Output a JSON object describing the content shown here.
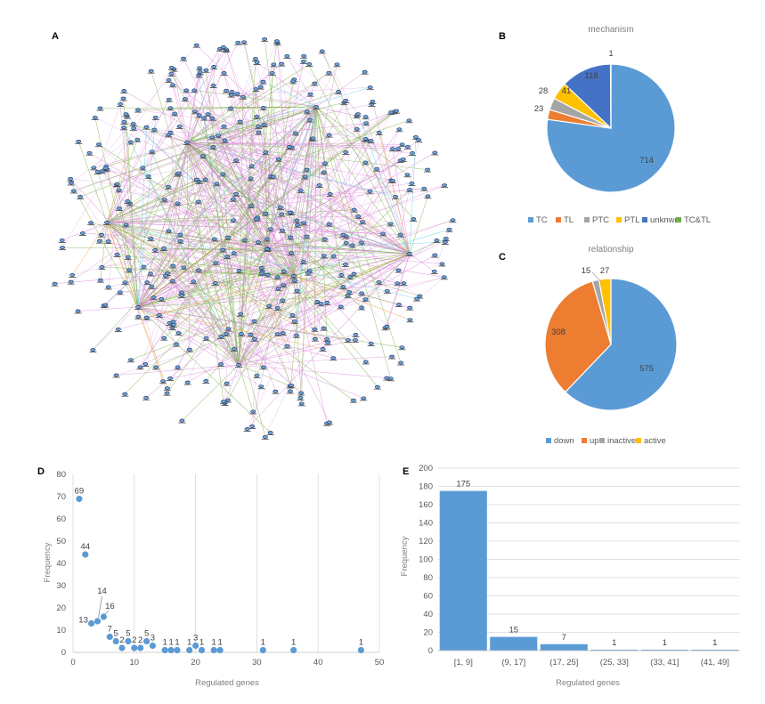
{
  "panels": {
    "A": "A",
    "B": "B",
    "C": "C",
    "D": "D",
    "E": "E"
  },
  "chart_data": [
    {
      "id": "A",
      "type": "network",
      "title": "",
      "edge_colors": {
        "TC": "#d98bd9",
        "TL": "#7fb24a",
        "other": "#5fd3e0",
        "accent": "#f0a040"
      },
      "node_color": "#233a66",
      "node_fill": "#6fa8dc"
    },
    {
      "id": "B",
      "type": "pie",
      "title": "mechanism",
      "labels": [
        "TC",
        "TL",
        "PTC",
        "PTL",
        "unknwn",
        "TC&TL"
      ],
      "values": [
        714,
        23,
        28,
        41,
        118,
        1
      ],
      "colors": [
        "#5b9bd5",
        "#ed7d31",
        "#a5a5a5",
        "#ffc000",
        "#4472c4",
        "#70ad47"
      ],
      "legend": "bottom"
    },
    {
      "id": "C",
      "type": "pie",
      "title": "relationship",
      "labels": [
        "down",
        "up",
        "inactive",
        "active"
      ],
      "values": [
        575,
        308,
        15,
        27
      ],
      "colors": [
        "#5b9bd5",
        "#ed7d31",
        "#a5a5a5",
        "#ffc000"
      ],
      "legend": "bottom"
    },
    {
      "id": "D",
      "type": "scatter",
      "title": "",
      "xlabel": "Regulated genes",
      "ylabel": "Frequency",
      "xlim": [
        0,
        50
      ],
      "ylim": [
        0,
        80
      ],
      "xticks": [
        0,
        10,
        20,
        30,
        40,
        50
      ],
      "yticks": [
        0,
        10,
        20,
        30,
        40,
        50,
        60,
        70,
        80
      ],
      "grid": "vertical",
      "color": "#5b9bd5",
      "points": [
        {
          "x": 1,
          "y": 69,
          "label": "69"
        },
        {
          "x": 2,
          "y": 44,
          "label": "44"
        },
        {
          "x": 3,
          "y": 13,
          "label": "13"
        },
        {
          "x": 4,
          "y": 14,
          "label": "14"
        },
        {
          "x": 5,
          "y": 16,
          "label": "16"
        },
        {
          "x": 6,
          "y": 7,
          "label": "7"
        },
        {
          "x": 7,
          "y": 5,
          "label": "5"
        },
        {
          "x": 8,
          "y": 2,
          "label": "2"
        },
        {
          "x": 9,
          "y": 5,
          "label": "5"
        },
        {
          "x": 10,
          "y": 2,
          "label": "2"
        },
        {
          "x": 11,
          "y": 2,
          "label": "2"
        },
        {
          "x": 12,
          "y": 5,
          "label": "5"
        },
        {
          "x": 13,
          "y": 3,
          "label": "3"
        },
        {
          "x": 15,
          "y": 1,
          "label": "1"
        },
        {
          "x": 16,
          "y": 1,
          "label": "1"
        },
        {
          "x": 17,
          "y": 1,
          "label": "1"
        },
        {
          "x": 19,
          "y": 1,
          "label": "1"
        },
        {
          "x": 20,
          "y": 3,
          "label": "3"
        },
        {
          "x": 21,
          "y": 1,
          "label": "1"
        },
        {
          "x": 23,
          "y": 1,
          "label": "1"
        },
        {
          "x": 24,
          "y": 1,
          "label": "1"
        },
        {
          "x": 31,
          "y": 1,
          "label": "1"
        },
        {
          "x": 36,
          "y": 1,
          "label": "1"
        },
        {
          "x": 47,
          "y": 1,
          "label": "1"
        }
      ]
    },
    {
      "id": "E",
      "type": "bar",
      "title": "",
      "xlabel": "Regulated genes",
      "ylabel": "Frequency",
      "categories": [
        "[1, 9]",
        "(9, 17]",
        "(17, 25]",
        "(25, 33]",
        "(33, 41]",
        "(41, 49]"
      ],
      "values": [
        175,
        15,
        7,
        1,
        1,
        1
      ],
      "ylim": [
        0,
        200
      ],
      "yticks": [
        0,
        20,
        40,
        60,
        80,
        100,
        120,
        140,
        160,
        180,
        200
      ],
      "grid": "horizontal",
      "color": "#5b9bd5"
    }
  ]
}
